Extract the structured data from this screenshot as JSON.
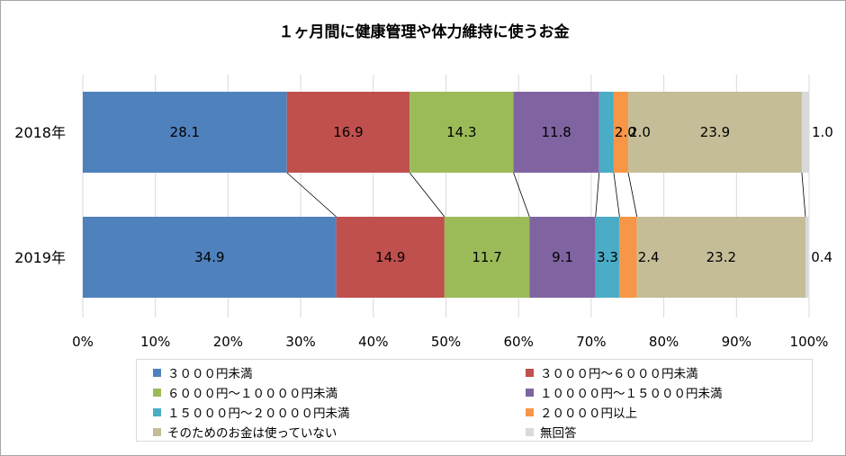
{
  "chart_data": {
    "type": "bar",
    "stacked": true,
    "orientation": "horizontal",
    "title": "１ヶ月間に健康管理や体力維持に使うお金",
    "categories": [
      "2018年",
      "2019年"
    ],
    "x_ticks": [
      "0%",
      "10%",
      "20%",
      "30%",
      "40%",
      "50%",
      "60%",
      "70%",
      "80%",
      "90%",
      "100%"
    ],
    "xlim": [
      0,
      100
    ],
    "grid": true,
    "legend_position": "bottom",
    "series": [
      {
        "name": "３０００円未満",
        "color": "#4f81bd",
        "values": [
          28.1,
          34.9
        ],
        "labels": [
          "28.1",
          "34.9"
        ]
      },
      {
        "name": "３０００円～６０００円未満",
        "color": "#c0504d",
        "values": [
          16.9,
          14.9
        ],
        "labels": [
          "16.9",
          "14.9"
        ]
      },
      {
        "name": "６０００円～１００００円未満",
        "color": "#9bbb59",
        "values": [
          14.3,
          11.7
        ],
        "labels": [
          "14.3",
          "11.7"
        ]
      },
      {
        "name": "１００００円～１５０００円未満",
        "color": "#8064a2",
        "values": [
          11.8,
          9.1
        ],
        "labels": [
          "11.8",
          "9.1"
        ]
      },
      {
        "name": "１５０００円～２００００円未満",
        "color": "#4bacc6",
        "values": [
          2.0,
          3.3
        ],
        "labels": [
          "2.0",
          "3.3"
        ]
      },
      {
        "name": "２００００円以上",
        "color": "#f79646",
        "values": [
          2.0,
          2.4
        ],
        "labels": [
          "2.0",
          "2.4"
        ]
      },
      {
        "name": "そのためのお金は使っていない",
        "color": "#c4bd97",
        "values": [
          23.9,
          23.2
        ],
        "labels": [
          "23.9",
          "23.2"
        ]
      },
      {
        "name": "無回答",
        "color": "#d9d9d9",
        "values": [
          1.0,
          0.4
        ],
        "labels": [
          "1.0",
          "0.4"
        ]
      }
    ]
  }
}
